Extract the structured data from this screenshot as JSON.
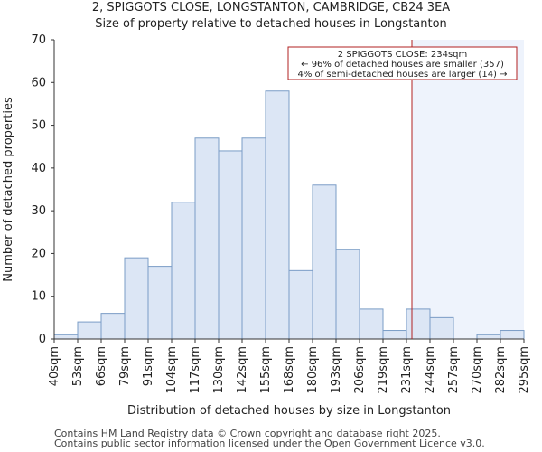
{
  "chart_data": {
    "type": "bar",
    "title": "2, SPIGGOTS CLOSE, LONGSTANTON, CAMBRIDGE, CB24 3EA",
    "subtitle": "Size of property relative to detached houses in Longstanton",
    "xlabel": "Distribution of detached houses by size in Longstanton",
    "ylabel": "Number of detached properties",
    "ylim": [
      0,
      70
    ],
    "yticks": [
      0,
      10,
      20,
      30,
      40,
      50,
      60,
      70
    ],
    "bin_edges": [
      40,
      53,
      66,
      79,
      91,
      104,
      117,
      130,
      142,
      155,
      168,
      180,
      193,
      206,
      219,
      231,
      244,
      257,
      270,
      282,
      295
    ],
    "tick_labels": [
      "40sqm",
      "53sqm",
      "66sqm",
      "79sqm",
      "91sqm",
      "104sqm",
      "117sqm",
      "130sqm",
      "142sqm",
      "155sqm",
      "168sqm",
      "180sqm",
      "193sqm",
      "206sqm",
      "219sqm",
      "231sqm",
      "244sqm",
      "257sqm",
      "270sqm",
      "282sqm",
      "295sqm"
    ],
    "values": [
      1,
      4,
      6,
      19,
      17,
      32,
      47,
      44,
      47,
      58,
      16,
      36,
      21,
      7,
      2,
      7,
      5,
      0,
      1,
      2
    ],
    "marker": {
      "value": 234,
      "label_lines": [
        "2 SPIGGOTS CLOSE: 234sqm",
        "← 96% of detached houses are smaller (357)",
        "4% of semi-detached houses are larger (14) →"
      ]
    },
    "colors": {
      "bar_fill": "#dce6f5",
      "bar_stroke": "#7a9cc6",
      "highlight_bg": "#eef3fc",
      "marker_line": "#b22222",
      "axis": "#333333"
    }
  },
  "footer": {
    "line1": "Contains HM Land Registry data © Crown copyright and database right 2025.",
    "line2": "Contains public sector information licensed under the Open Government Licence v3.0."
  }
}
